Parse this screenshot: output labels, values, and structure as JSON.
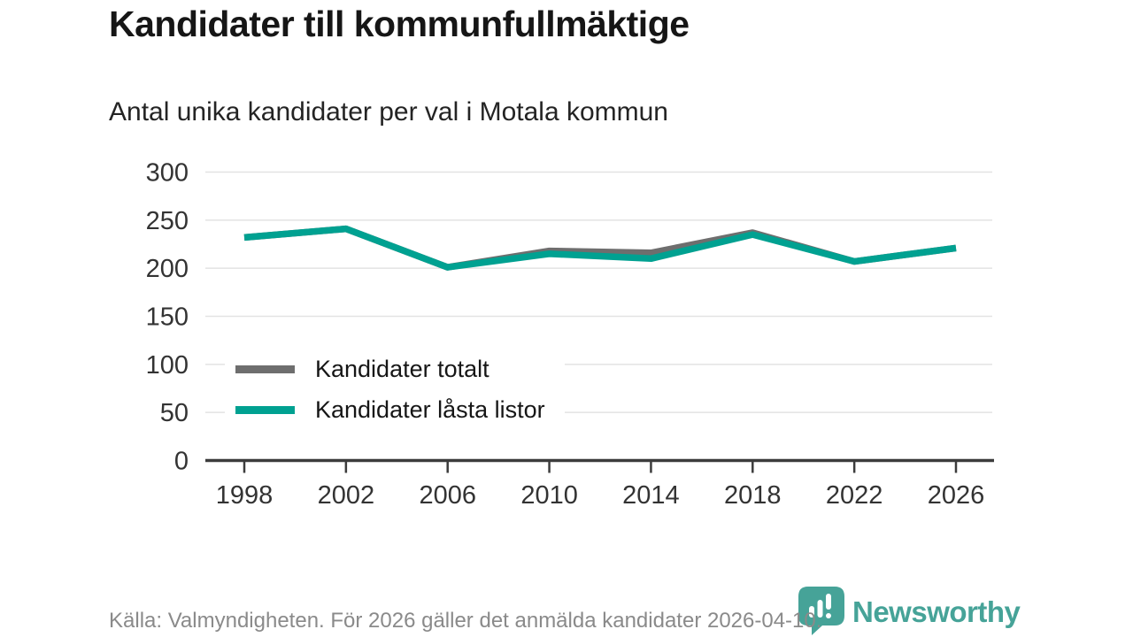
{
  "chart_data": {
    "type": "line",
    "title": "Kandidater till kommunfullmäktige",
    "subtitle": "Antal unika kandidater per val i Motala kommun",
    "categories": [
      "1998",
      "2002",
      "2006",
      "2010",
      "2014",
      "2018",
      "2022",
      "2026"
    ],
    "series": [
      {
        "name": "Kandidater totalt",
        "color_key": "gray_series",
        "values": [
          232,
          241,
          201,
          218,
          216,
          237,
          207,
          221
        ]
      },
      {
        "name": "Kandidater låsta listor",
        "color_key": "accent",
        "values": [
          232,
          241,
          201,
          215,
          210,
          235,
          207,
          221
        ]
      }
    ],
    "xlabel": "",
    "ylabel": "",
    "ylim": [
      0,
      300
    ],
    "yticks": [
      0,
      50,
      100,
      150,
      200,
      250,
      300
    ],
    "grid": "horizontal",
    "legend_position": "inside-left"
  },
  "footer": {
    "source_text": "Källa: Valmyndigheten. För 2026 gäller det anmälda kandidater 2026-04-10.",
    "brand_name": "Newsworthy"
  },
  "icons": {
    "brand_logo": "speech-bubble-with-bar-chart-and-exclamation"
  },
  "colors": {
    "accent": "#00a191",
    "gray_series": "#6e6e6e",
    "logo_teal": "#46a398",
    "grid": "#e3e3e3",
    "axis": "#3c3c3c",
    "text_dark": "#161616",
    "text_sub": "#242424",
    "tick_label": "#333333",
    "footer_gray": "#8a8a8a"
  }
}
